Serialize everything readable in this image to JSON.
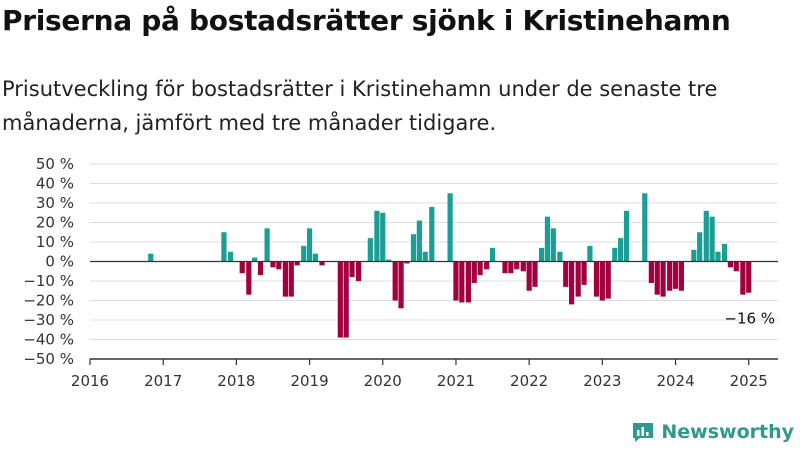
{
  "title": "Priserna på bostadsrätter sjönk i Kristinehamn",
  "subtitle": "Prisutveckling för bostadsrätter i Kristinehamn under de senaste tre månaderna, jämfört med tre månader tidigare.",
  "brand": "Newsworthy",
  "colors": {
    "positive": "#1a9e95",
    "negative": "#a3003f",
    "grid": "#dddddd",
    "axis": "#333333"
  },
  "chart_data": {
    "type": "bar",
    "title": "",
    "xlabel": "",
    "ylabel": "",
    "ylim": [
      -50,
      50
    ],
    "xlim": [
      2016,
      2025.4
    ],
    "grid": true,
    "y_ticks": [
      50,
      40,
      30,
      20,
      10,
      0,
      -10,
      -20,
      -30,
      -40,
      -50
    ],
    "y_tick_labels": [
      "50 %",
      "40 %",
      "30 %",
      "20 %",
      "10 %",
      "0 %",
      "−10 %",
      "−20 %",
      "−30 %",
      "−40 %",
      "−50 %"
    ],
    "x_ticks": [
      2016,
      2017,
      2018,
      2019,
      2020,
      2021,
      2022,
      2023,
      2024,
      2025
    ],
    "x_tick_labels": [
      "2016",
      "2017",
      "2018",
      "2019",
      "2020",
      "2021",
      "2022",
      "2023",
      "2024",
      "2025"
    ],
    "annotation": {
      "text": "−16 %",
      "x": 2025.0,
      "y": -16
    },
    "series": [
      {
        "points": [
          {
            "x": 2016.83,
            "y": 4
          },
          {
            "x": 2017.83,
            "y": 15
          },
          {
            "x": 2017.92,
            "y": 5
          },
          {
            "x": 2018.08,
            "y": -6
          },
          {
            "x": 2018.17,
            "y": -17
          },
          {
            "x": 2018.25,
            "y": 2
          },
          {
            "x": 2018.33,
            "y": -7
          },
          {
            "x": 2018.42,
            "y": 17
          },
          {
            "x": 2018.5,
            "y": -3
          },
          {
            "x": 2018.58,
            "y": -4
          },
          {
            "x": 2018.67,
            "y": -18
          },
          {
            "x": 2018.75,
            "y": -18
          },
          {
            "x": 2018.83,
            "y": -2
          },
          {
            "x": 2018.92,
            "y": 8
          },
          {
            "x": 2019.0,
            "y": 17
          },
          {
            "x": 2019.08,
            "y": 4
          },
          {
            "x": 2019.17,
            "y": -2
          },
          {
            "x": 2019.42,
            "y": -39
          },
          {
            "x": 2019.5,
            "y": -39
          },
          {
            "x": 2019.58,
            "y": -8
          },
          {
            "x": 2019.67,
            "y": -10
          },
          {
            "x": 2019.83,
            "y": 12
          },
          {
            "x": 2019.92,
            "y": 26
          },
          {
            "x": 2020.0,
            "y": 25
          },
          {
            "x": 2020.08,
            "y": 1
          },
          {
            "x": 2020.17,
            "y": -20
          },
          {
            "x": 2020.25,
            "y": -24
          },
          {
            "x": 2020.33,
            "y": -1
          },
          {
            "x": 2020.42,
            "y": 14
          },
          {
            "x": 2020.5,
            "y": 21
          },
          {
            "x": 2020.58,
            "y": 5
          },
          {
            "x": 2020.67,
            "y": 28
          },
          {
            "x": 2020.92,
            "y": 35
          },
          {
            "x": 2021.0,
            "y": -20
          },
          {
            "x": 2021.08,
            "y": -21
          },
          {
            "x": 2021.17,
            "y": -21
          },
          {
            "x": 2021.25,
            "y": -11
          },
          {
            "x": 2021.33,
            "y": -7
          },
          {
            "x": 2021.42,
            "y": -4
          },
          {
            "x": 2021.5,
            "y": 7
          },
          {
            "x": 2021.67,
            "y": -6
          },
          {
            "x": 2021.75,
            "y": -6
          },
          {
            "x": 2021.83,
            "y": -4
          },
          {
            "x": 2021.92,
            "y": -5
          },
          {
            "x": 2022.0,
            "y": -15
          },
          {
            "x": 2022.08,
            "y": -13
          },
          {
            "x": 2022.17,
            "y": 7
          },
          {
            "x": 2022.25,
            "y": 23
          },
          {
            "x": 2022.33,
            "y": 17
          },
          {
            "x": 2022.42,
            "y": 5
          },
          {
            "x": 2022.5,
            "y": -13
          },
          {
            "x": 2022.58,
            "y": -22
          },
          {
            "x": 2022.67,
            "y": -18
          },
          {
            "x": 2022.75,
            "y": -12
          },
          {
            "x": 2022.83,
            "y": 8
          },
          {
            "x": 2022.92,
            "y": -18
          },
          {
            "x": 2023.0,
            "y": -20
          },
          {
            "x": 2023.08,
            "y": -19
          },
          {
            "x": 2023.17,
            "y": 7
          },
          {
            "x": 2023.25,
            "y": 12
          },
          {
            "x": 2023.33,
            "y": 26
          },
          {
            "x": 2023.58,
            "y": 35
          },
          {
            "x": 2023.67,
            "y": -11
          },
          {
            "x": 2023.75,
            "y": -17
          },
          {
            "x": 2023.83,
            "y": -18
          },
          {
            "x": 2023.92,
            "y": -15
          },
          {
            "x": 2024.0,
            "y": -14
          },
          {
            "x": 2024.08,
            "y": -15
          },
          {
            "x": 2024.25,
            "y": 6
          },
          {
            "x": 2024.33,
            "y": 15
          },
          {
            "x": 2024.42,
            "y": 26
          },
          {
            "x": 2024.5,
            "y": 23
          },
          {
            "x": 2024.58,
            "y": 5
          },
          {
            "x": 2024.67,
            "y": 9
          },
          {
            "x": 2024.75,
            "y": -3
          },
          {
            "x": 2024.83,
            "y": -5
          },
          {
            "x": 2024.92,
            "y": -17
          },
          {
            "x": 2025.0,
            "y": -16
          }
        ]
      }
    ]
  }
}
